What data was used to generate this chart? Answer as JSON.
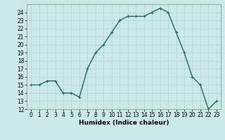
{
  "x": [
    0,
    1,
    2,
    3,
    4,
    5,
    6,
    7,
    8,
    9,
    10,
    11,
    12,
    13,
    14,
    15,
    16,
    17,
    18,
    19,
    20,
    21,
    22,
    23
  ],
  "y": [
    15,
    15,
    15.5,
    15.5,
    14,
    14,
    13.5,
    17,
    19,
    20,
    21.5,
    23,
    23.5,
    23.5,
    23.5,
    24,
    24.5,
    24,
    21.5,
    19,
    16,
    15,
    12,
    13
  ],
  "line_color": "#1f6b5a",
  "marker": "+",
  "marker_size": 3,
  "bg_color": "#cce9e9",
  "grid_color": "#b0d8d8",
  "xlabel": "Humidex (Indice chaleur)",
  "xlim": [
    -0.5,
    23.5
  ],
  "ylim": [
    12,
    25
  ],
  "yticks": [
    12,
    13,
    14,
    15,
    16,
    17,
    18,
    19,
    20,
    21,
    22,
    23,
    24
  ],
  "xticks": [
    0,
    1,
    2,
    3,
    4,
    5,
    6,
    7,
    8,
    9,
    10,
    11,
    12,
    13,
    14,
    15,
    16,
    17,
    18,
    19,
    20,
    21,
    22,
    23
  ],
  "tick_label_fontsize": 5.5,
  "xlabel_fontsize": 6.5,
  "line_width": 1.0,
  "fig_width": 3.2,
  "fig_height": 2.0,
  "dpi": 100
}
